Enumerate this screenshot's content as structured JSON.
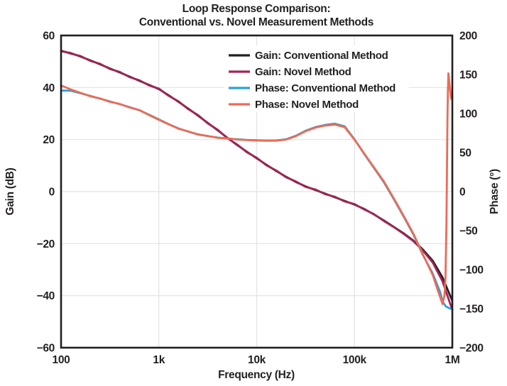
{
  "chart_data": {
    "type": "line",
    "title_line1": "Loop Response Comparison:",
    "title_line2": "Conventional vs. Novel Measurement Methods",
    "x_axis": {
      "label": "Frequency (Hz)",
      "scale": "log",
      "min_hz": 100,
      "max_hz": 1000000,
      "ticks": [
        {
          "value": 100,
          "label": "100"
        },
        {
          "value": 1000,
          "label": "1k"
        },
        {
          "value": 10000,
          "label": "10k"
        },
        {
          "value": 100000,
          "label": "100k"
        },
        {
          "value": 1000000,
          "label": "1M"
        }
      ]
    },
    "y_left": {
      "label": "Gain (dB)",
      "min": -60,
      "max": 60,
      "ticks": [
        {
          "value": 60,
          "label": "60"
        },
        {
          "value": 40,
          "label": "40"
        },
        {
          "value": 20,
          "label": "20"
        },
        {
          "value": 0,
          "label": "0"
        },
        {
          "value": -20,
          "label": "−20"
        },
        {
          "value": -40,
          "label": "−40"
        },
        {
          "value": -60,
          "label": "−60"
        }
      ]
    },
    "y_right": {
      "label": "Phase (°)",
      "min": -200,
      "max": 200,
      "ticks": [
        {
          "value": 200,
          "label": "200"
        },
        {
          "value": 150,
          "label": "150"
        },
        {
          "value": 100,
          "label": "100"
        },
        {
          "value": 50,
          "label": "50"
        },
        {
          "value": 0,
          "label": "0"
        },
        {
          "value": -50,
          "label": "−50"
        },
        {
          "value": -100,
          "label": "−100"
        },
        {
          "value": -150,
          "label": "−150"
        },
        {
          "value": -200,
          "label": "−200"
        }
      ]
    },
    "grid": {
      "show": true,
      "color": "#e2e2e2",
      "gain_gridlines_db": [
        40,
        20,
        0,
        -20,
        -40
      ],
      "freq_gridlines_hz": [
        1000,
        10000,
        100000
      ]
    },
    "legend": {
      "position": "upper-right-inside",
      "background": "#ffffff"
    },
    "series": [
      {
        "name": "Gain: Conventional Method",
        "axis": "left",
        "color": "#231f20",
        "freq_hz": [
          100,
          126,
          158,
          200,
          251,
          316,
          398,
          501,
          631,
          794,
          1000,
          1259,
          1585,
          1995,
          2512,
          3162,
          3981,
          5012,
          6310,
          7943,
          10000,
          12589,
          15849,
          19953,
          25119,
          31623,
          39811,
          50119,
          63096,
          79433,
          100000,
          125893,
          158489,
          199526,
          251189,
          316228,
          398107,
          501187,
          630957,
          794328,
          1000000
        ],
        "values": [
          54.0,
          53.2,
          51.9,
          50.4,
          48.9,
          47.3,
          45.8,
          44.2,
          42.6,
          41.0,
          39.4,
          37.0,
          34.5,
          31.9,
          29.2,
          26.4,
          23.6,
          20.7,
          17.9,
          15.3,
          12.8,
          10.3,
          7.9,
          5.7,
          3.7,
          2.0,
          0.6,
          -0.8,
          -2.2,
          -3.6,
          -5.0,
          -6.7,
          -8.8,
          -11.1,
          -13.5,
          -16.0,
          -18.8,
          -22.3,
          -26.6,
          -33.0,
          -42.0
        ]
      },
      {
        "name": "Gain: Novel Method",
        "axis": "left",
        "color": "#a22456",
        "freq_hz": [
          100,
          126,
          158,
          200,
          251,
          316,
          398,
          501,
          631,
          794,
          1000,
          1259,
          1585,
          1995,
          2512,
          3162,
          3981,
          5012,
          6310,
          7943,
          10000,
          12589,
          15849,
          19953,
          25119,
          31623,
          39811,
          50119,
          63096,
          79433,
          100000,
          125893,
          158489,
          199526,
          251189,
          316228,
          398107,
          501187,
          630957,
          794328,
          1000000
        ],
        "values": [
          54.2,
          53.0,
          52.1,
          50.2,
          49.1,
          47.1,
          46.0,
          44.0,
          42.8,
          40.8,
          39.6,
          36.8,
          34.7,
          31.7,
          29.4,
          26.2,
          23.8,
          20.5,
          18.1,
          15.1,
          13.0,
          10.1,
          8.1,
          5.5,
          3.9,
          1.8,
          0.8,
          -1.0,
          -2.0,
          -3.8,
          -4.8,
          -6.9,
          -8.7,
          -11.3,
          -13.6,
          -16.2,
          -19.0,
          -22.7,
          -27.3,
          -34.5,
          -45.5
        ]
      },
      {
        "name": "Phase: Conventional Method",
        "axis": "right",
        "color": "#2aa1d8",
        "freq_hz": [
          100,
          126,
          158,
          200,
          251,
          316,
          398,
          501,
          631,
          794,
          1000,
          1259,
          1585,
          1995,
          2512,
          3162,
          3981,
          5012,
          6310,
          7943,
          10000,
          12589,
          15849,
          19953,
          25119,
          31623,
          39811,
          50119,
          63096,
          79433,
          100000,
          112202,
          125893,
          141254,
          158489,
          199526,
          251189,
          316228,
          398107,
          501187,
          630957,
          707946,
          749894,
          794328,
          831764,
          851138,
          870964,
          891251,
          901571,
          912011,
          933254,
          954993,
          977237,
          1000000
        ],
        "values": [
          129.5,
          129.2,
          126.0,
          122.5,
          119.0,
          115.5,
          112.0,
          108.2,
          104.2,
          98.5,
          92.5,
          86.5,
          81.0,
          76.8,
          73.4,
          71.0,
          69.2,
          68.0,
          67.0,
          66.2,
          65.8,
          65.4,
          65.5,
          67.0,
          71.5,
          78.0,
          82.6,
          85.4,
          87.0,
          83.5,
          67.0,
          57.5,
          48.0,
          39.0,
          30.0,
          12.0,
          -9.4,
          -31.5,
          -54.5,
          -81.5,
          -105.0,
          -121.0,
          -128.5,
          -141.0,
          -144.5,
          -146.5,
          -147.5,
          -148.2,
          -148.5,
          -148.8,
          -149.5,
          -150.0,
          -150.3,
          -150.5
        ]
      },
      {
        "name": "Phase: Novel Method",
        "axis": "right",
        "color": "#ec6b56",
        "freq_hz": [
          100,
          126,
          158,
          200,
          251,
          316,
          398,
          501,
          631,
          794,
          1000,
          1259,
          1585,
          1995,
          2512,
          3162,
          3981,
          5012,
          6310,
          7943,
          10000,
          12589,
          15849,
          19953,
          25119,
          31623,
          39811,
          50119,
          63096,
          79433,
          100000,
          112202,
          125893,
          141254,
          158489,
          199526,
          251189,
          316228,
          398107,
          501187,
          630957,
          707946,
          749894,
          794328,
          831764,
          851138,
          870964,
          891251,
          901571,
          912011,
          933254,
          954993,
          977237,
          1000000
        ],
        "values": [
          136.0,
          130.8,
          126.5,
          122.0,
          119.3,
          115.0,
          112.3,
          107.8,
          104.5,
          98.0,
          92.0,
          86.2,
          80.6,
          77.1,
          73.0,
          71.3,
          68.9,
          68.2,
          66.7,
          66.0,
          65.5,
          65.1,
          65.2,
          66.6,
          71.0,
          77.4,
          81.9,
          84.6,
          85.8,
          82.5,
          66.5,
          57.8,
          48.5,
          39.6,
          30.8,
          13.0,
          -8.4,
          -30.5,
          -53.5,
          -80.5,
          -107.0,
          -126.0,
          -135.0,
          -144.0,
          -133.0,
          -110.0,
          -40.0,
          90.0,
          130.0,
          151.5,
          139.0,
          127.0,
          119.0,
          121.5
        ]
      }
    ]
  }
}
